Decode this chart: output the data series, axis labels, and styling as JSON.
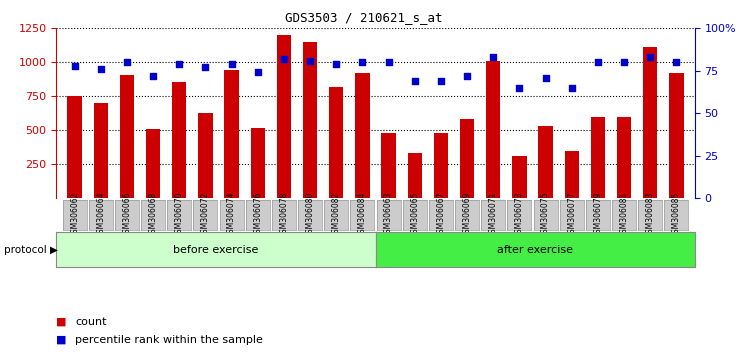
{
  "title": "GDS3503 / 210621_s_at",
  "categories": [
    "GSM306062",
    "GSM306064",
    "GSM306066",
    "GSM306068",
    "GSM306070",
    "GSM306072",
    "GSM306074",
    "GSM306076",
    "GSM306078",
    "GSM306080",
    "GSM306082",
    "GSM306084",
    "GSM306063",
    "GSM306065",
    "GSM306067",
    "GSM306069",
    "GSM306071",
    "GSM306073",
    "GSM306075",
    "GSM306077",
    "GSM306079",
    "GSM306081",
    "GSM306083",
    "GSM306085"
  ],
  "counts": [
    750,
    700,
    910,
    510,
    855,
    630,
    940,
    520,
    1200,
    1150,
    820,
    920,
    480,
    330,
    480,
    580,
    1010,
    310,
    530,
    350,
    595,
    595,
    1110,
    920
  ],
  "percentile": [
    78,
    76,
    80,
    72,
    79,
    77,
    79,
    74,
    82,
    81,
    79,
    80,
    80,
    69,
    69,
    72,
    83,
    65,
    71,
    65,
    80,
    80,
    83,
    80
  ],
  "n_before": 12,
  "n_after": 12,
  "before_label": "before exercise",
  "after_label": "after exercise",
  "protocol_label": "protocol",
  "ylim_left": [
    0,
    1250
  ],
  "ylim_right": [
    0,
    100
  ],
  "yticks_left": [
    250,
    500,
    750,
    1000,
    1250
  ],
  "yticks_right": [
    0,
    25,
    50,
    75,
    100
  ],
  "bar_color": "#cc0000",
  "dot_color": "#0000cc",
  "title_color": "#000000",
  "left_axis_color": "#cc0000",
  "right_axis_color": "#0000cc",
  "before_color": "#ccffcc",
  "after_color": "#44ee44",
  "tick_label_bg": "#cccccc",
  "tick_label_edge": "#999999"
}
